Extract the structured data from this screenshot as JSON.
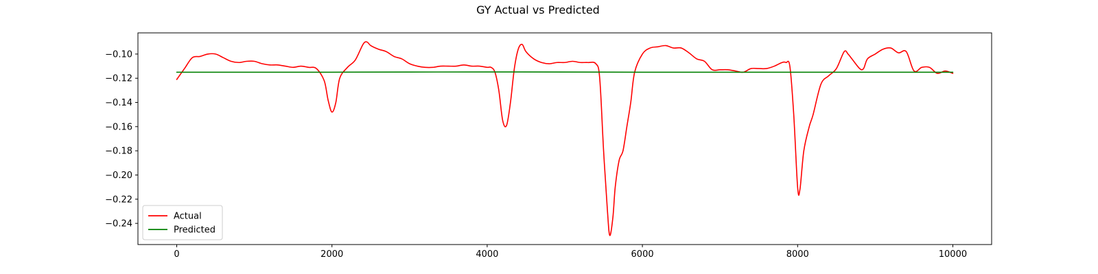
{
  "chart_data": {
    "type": "line",
    "title": "GY Actual vs Predicted",
    "xlabel": "",
    "ylabel": "",
    "xlim": [
      -500,
      10500
    ],
    "ylim": [
      -0.2575,
      -0.0825
    ],
    "xticks": [
      0,
      2000,
      4000,
      6000,
      8000,
      10000
    ],
    "xtick_labels": [
      "0",
      "2000",
      "4000",
      "6000",
      "8000",
      "10000"
    ],
    "yticks": [
      -0.24,
      -0.22,
      -0.2,
      -0.18,
      -0.16,
      -0.14,
      -0.12,
      -0.1
    ],
    "ytick_labels": [
      "−0.24",
      "−0.22",
      "−0.20",
      "−0.18",
      "−0.16",
      "−0.14",
      "−0.12",
      "−0.10"
    ],
    "grid": false,
    "legend_position": "lower-left",
    "series": [
      {
        "name": "Actual",
        "color": "#ff0000",
        "x": [
          0,
          100,
          200,
          300,
          400,
          500,
          600,
          700,
          800,
          900,
          1000,
          1100,
          1200,
          1300,
          1400,
          1500,
          1600,
          1700,
          1800,
          1900,
          1950,
          2000,
          2050,
          2100,
          2200,
          2300,
          2400,
          2450,
          2500,
          2600,
          2700,
          2800,
          2900,
          3000,
          3100,
          3200,
          3300,
          3400,
          3500,
          3600,
          3700,
          3800,
          3900,
          4000,
          4050,
          4100,
          4150,
          4200,
          4250,
          4300,
          4350,
          4400,
          4450,
          4500,
          4600,
          4700,
          4800,
          4900,
          5000,
          5100,
          5200,
          5300,
          5400,
          5450,
          5500,
          5550,
          5580,
          5620,
          5650,
          5700,
          5750,
          5800,
          5850,
          5900,
          6000,
          6100,
          6200,
          6300,
          6400,
          6500,
          6600,
          6700,
          6800,
          6900,
          7000,
          7100,
          7200,
          7300,
          7400,
          7500,
          7600,
          7700,
          7800,
          7850,
          7900,
          7950,
          8000,
          8030,
          8080,
          8150,
          8200,
          8300,
          8400,
          8500,
          8600,
          8650,
          8700,
          8800,
          8850,
          8900,
          9000,
          9100,
          9200,
          9300,
          9400,
          9500,
          9600,
          9700,
          9800,
          9900,
          10000
        ],
        "values": [
          -0.121,
          -0.112,
          -0.103,
          -0.102,
          -0.1,
          -0.1,
          -0.103,
          -0.106,
          -0.107,
          -0.106,
          -0.106,
          -0.108,
          -0.109,
          -0.109,
          -0.11,
          -0.111,
          -0.11,
          -0.111,
          -0.112,
          -0.122,
          -0.138,
          -0.148,
          -0.14,
          -0.12,
          -0.111,
          -0.105,
          -0.092,
          -0.09,
          -0.093,
          -0.096,
          -0.098,
          -0.102,
          -0.104,
          -0.108,
          -0.11,
          -0.111,
          -0.111,
          -0.11,
          -0.11,
          -0.11,
          -0.109,
          -0.11,
          -0.11,
          -0.111,
          -0.111,
          -0.115,
          -0.13,
          -0.155,
          -0.159,
          -0.14,
          -0.112,
          -0.096,
          -0.092,
          -0.098,
          -0.104,
          -0.107,
          -0.108,
          -0.107,
          -0.107,
          -0.106,
          -0.107,
          -0.107,
          -0.108,
          -0.12,
          -0.18,
          -0.23,
          -0.25,
          -0.235,
          -0.21,
          -0.188,
          -0.18,
          -0.16,
          -0.14,
          -0.115,
          -0.1,
          -0.095,
          -0.094,
          -0.093,
          -0.095,
          -0.095,
          -0.099,
          -0.104,
          -0.106,
          -0.113,
          -0.113,
          -0.113,
          -0.114,
          -0.115,
          -0.112,
          -0.112,
          -0.112,
          -0.11,
          -0.107,
          -0.107,
          -0.11,
          -0.15,
          -0.21,
          -0.212,
          -0.18,
          -0.16,
          -0.15,
          -0.125,
          -0.118,
          -0.112,
          -0.098,
          -0.1,
          -0.104,
          -0.112,
          -0.112,
          -0.104,
          -0.1,
          -0.096,
          -0.095,
          -0.099,
          -0.098,
          -0.114,
          -0.111,
          -0.111,
          -0.116,
          -0.114,
          -0.116
        ]
      },
      {
        "name": "Predicted",
        "color": "#008000",
        "x": [
          0,
          2000,
          4000,
          6000,
          8000,
          10000
        ],
        "values": [
          -0.115,
          -0.115,
          -0.1148,
          -0.115,
          -0.115,
          -0.115
        ]
      }
    ]
  }
}
